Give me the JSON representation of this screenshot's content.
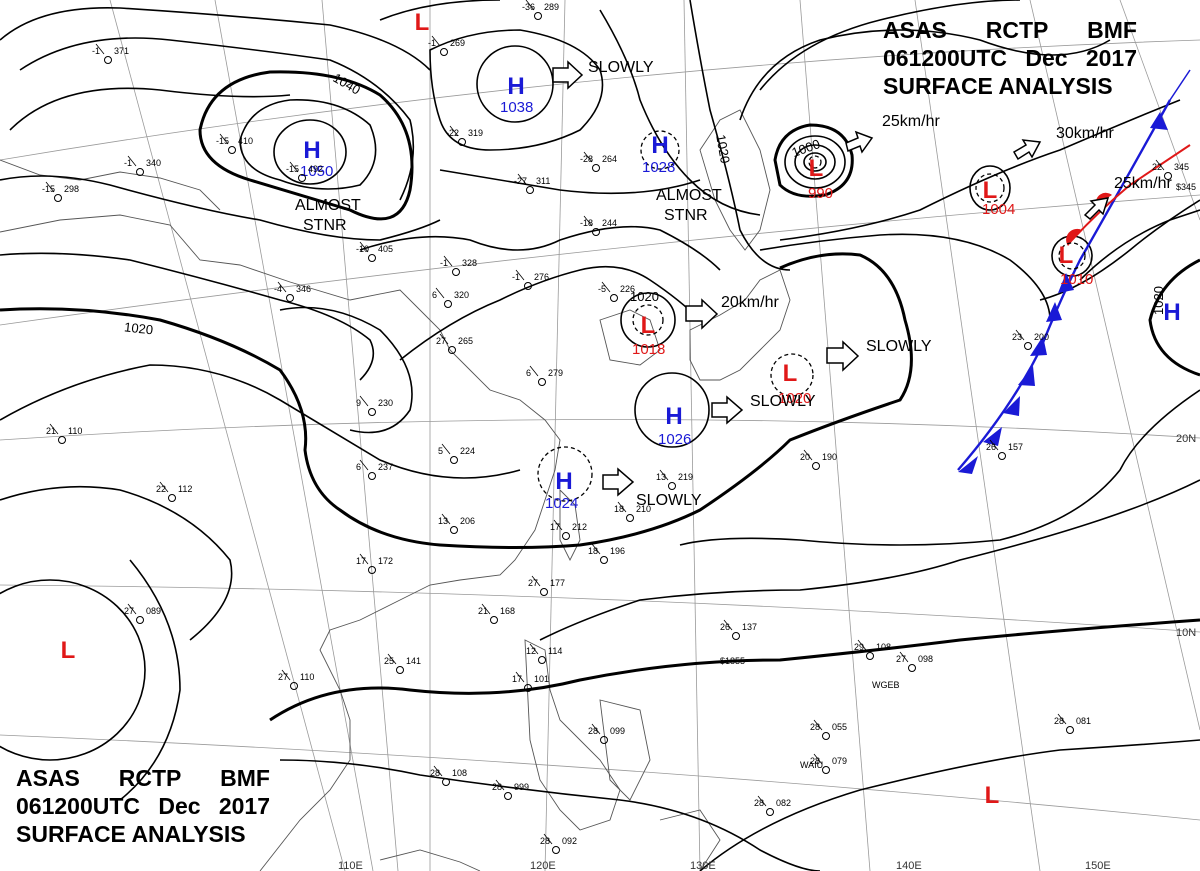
{
  "header": {
    "agency": "ASAS",
    "station": "RCTP",
    "source": "BMF",
    "valid_time": "061200UTC",
    "month": "Dec",
    "year": "2017",
    "product": "SURFACE ANALYSIS"
  },
  "colors": {
    "high": "#1a1ad6",
    "low": "#e01818",
    "isobar": "#000000",
    "cold_front": "#1a1ad6",
    "warm_front": "#e01818"
  },
  "pressure_centers": [
    {
      "id": "h1050",
      "type": "H",
      "value": "1050"
    },
    {
      "id": "h1038",
      "type": "H",
      "value": "1038"
    },
    {
      "id": "h1028",
      "type": "H",
      "value": "1028"
    },
    {
      "id": "l1018",
      "type": "L",
      "value": "1018"
    },
    {
      "id": "h1026",
      "type": "H",
      "value": "1026"
    },
    {
      "id": "l1020",
      "type": "L",
      "value": "1020"
    },
    {
      "id": "h1024",
      "type": "H",
      "value": "1024"
    },
    {
      "id": "l990",
      "type": "L",
      "value": "990"
    },
    {
      "id": "l1004",
      "type": "L",
      "value": "1004"
    },
    {
      "id": "l1010",
      "type": "L",
      "value": "1010"
    },
    {
      "id": "h_east",
      "type": "H",
      "value": ""
    },
    {
      "id": "l_top",
      "type": "L",
      "value": ""
    },
    {
      "id": "l_sw",
      "type": "L",
      "value": ""
    },
    {
      "id": "l_se",
      "type": "L",
      "value": ""
    }
  ],
  "movements": [
    {
      "id": "m1038",
      "text": "SLOWLY"
    },
    {
      "id": "m990",
      "text": "25km/hr"
    },
    {
      "id": "m1004",
      "text": "30km/hr"
    },
    {
      "id": "m1010",
      "text": "25km/hr"
    },
    {
      "id": "m1018",
      "text": "20km/hr"
    },
    {
      "id": "m1020",
      "text": "SLOWLY"
    },
    {
      "id": "m1026",
      "text": "SLOWLY"
    },
    {
      "id": "m1024",
      "text": "SLOWLY"
    },
    {
      "id": "m1050",
      "text": "ALMOST\nSTNR"
    },
    {
      "id": "m1028",
      "text": "ALMOST\nSTNR"
    }
  ],
  "isobar_labels": [
    "1040",
    "1020",
    "1000",
    "1020",
    "1020",
    "1020"
  ],
  "lat_labels": [
    "20N",
    "10N"
  ],
  "lon_labels": [
    "110E",
    "120E",
    "130E",
    "140E",
    "150E"
  ],
  "station_plots": [
    {
      "t": "-1",
      "p": "371"
    },
    {
      "t": "-1",
      "p": "269"
    },
    {
      "t": "-22",
      "p": "319"
    },
    {
      "t": "-15",
      "p": "410"
    },
    {
      "t": "-15",
      "p": "492"
    },
    {
      "t": "-10",
      "p": "405"
    },
    {
      "t": "-1",
      "p": "328"
    },
    {
      "t": "-27",
      "p": "311"
    },
    {
      "t": "-28",
      "p": "264"
    },
    {
      "t": "-18",
      "p": "244"
    },
    {
      "t": "-4",
      "p": "346"
    },
    {
      "t": "6",
      "p": "320"
    },
    {
      "t": "-1",
      "p": "276"
    },
    {
      "t": "-5",
      "p": "226"
    },
    {
      "t": "27",
      "p": "265"
    },
    {
      "t": "6",
      "p": "279"
    },
    {
      "t": "9",
      "p": "230"
    },
    {
      "t": "5",
      "p": "224"
    },
    {
      "t": "6",
      "p": "237"
    },
    {
      "t": "13",
      "p": "206"
    },
    {
      "t": "13",
      "p": "219"
    },
    {
      "t": "18",
      "p": "210"
    },
    {
      "t": "17",
      "p": "212"
    },
    {
      "t": "18",
      "p": "196"
    },
    {
      "t": "17",
      "p": "172"
    },
    {
      "t": "21",
      "p": "168"
    },
    {
      "t": "27",
      "p": "177"
    },
    {
      "t": "22",
      "p": "112"
    },
    {
      "t": "21",
      "p": "110"
    },
    {
      "t": "27",
      "p": "089"
    },
    {
      "t": "25",
      "p": "141"
    },
    {
      "t": "27",
      "p": "110"
    },
    {
      "t": "12",
      "p": "114"
    },
    {
      "t": "17",
      "p": "101"
    },
    {
      "t": "26",
      "p": "137"
    },
    {
      "t": "29",
      "p": "108"
    },
    {
      "t": "27",
      "p": "098"
    },
    {
      "t": "28",
      "p": "055"
    },
    {
      "t": "28",
      "p": "079"
    },
    {
      "t": "28",
      "p": "081"
    },
    {
      "t": "28",
      "p": "082"
    },
    {
      "t": "28",
      "p": "108"
    },
    {
      "t": "28",
      "p": "999"
    },
    {
      "t": "28",
      "p": "092"
    },
    {
      "t": "28",
      "p": "099"
    },
    {
      "t": "20",
      "p": "190"
    },
    {
      "t": "26",
      "p": "157"
    },
    {
      "t": "23",
      "p": "200"
    },
    {
      "t": "22",
      "p": "345"
    },
    {
      "t": "-36",
      "p": "289"
    },
    {
      "t": "-1",
      "p": "340"
    },
    {
      "t": "-15",
      "p": "298"
    }
  ],
  "ship_ids": [
    "WGEB",
    "WAIU",
    "$1855",
    "$345"
  ]
}
